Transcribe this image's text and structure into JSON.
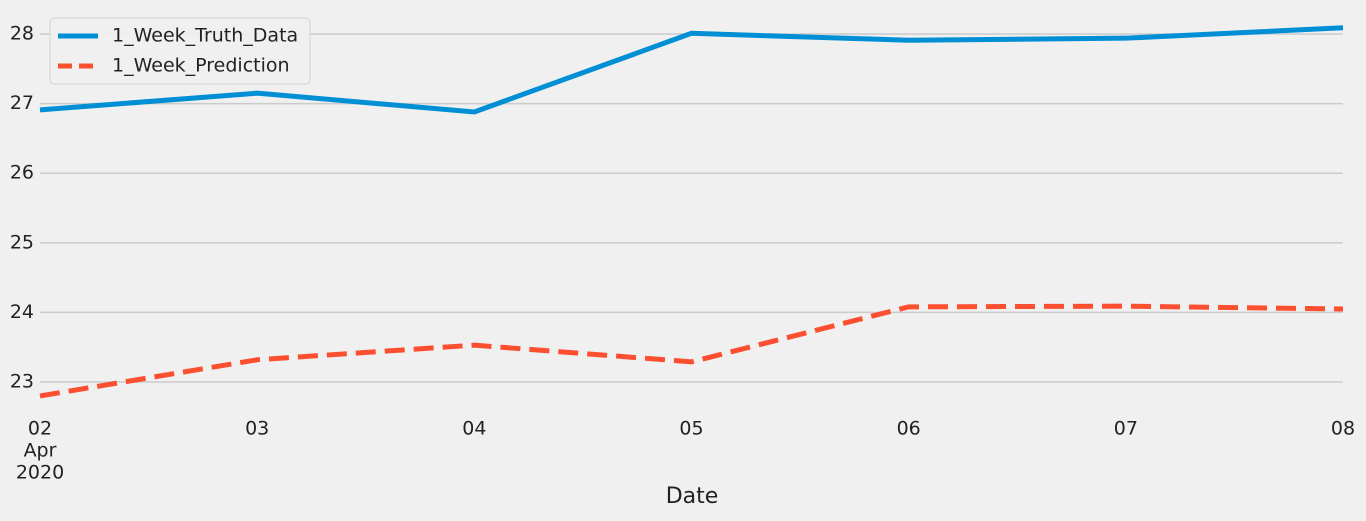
{
  "chart_data": {
    "type": "line",
    "x": [
      "2020-04-02",
      "2020-04-03",
      "2020-04-04",
      "2020-04-05",
      "2020-04-06",
      "2020-04-07",
      "2020-04-08"
    ],
    "xlim": [
      "2020-04-02",
      "2020-04-08"
    ],
    "xticks": [
      {
        "value": "2020-04-02",
        "label": [
          "02",
          "Apr",
          "2020"
        ]
      },
      {
        "value": "2020-04-03",
        "label": [
          "03"
        ]
      },
      {
        "value": "2020-04-04",
        "label": [
          "04"
        ]
      },
      {
        "value": "2020-04-05",
        "label": [
          "05"
        ]
      },
      {
        "value": "2020-04-06",
        "label": [
          "06"
        ]
      },
      {
        "value": "2020-04-07",
        "label": [
          "07"
        ]
      },
      {
        "value": "2020-04-08",
        "label": [
          "08"
        ]
      }
    ],
    "xlabel": "Date",
    "ylim": [
      22.67,
      28.23
    ],
    "yticks": [
      23,
      24,
      25,
      26,
      27,
      28
    ],
    "grid": true,
    "legend": "upper left",
    "series": [
      {
        "name": "1_Week_Truth_Data",
        "color": "#008fd5",
        "dash": false,
        "values": [
          26.91,
          27.15,
          26.88,
          28.01,
          27.91,
          27.94,
          28.09
        ]
      },
      {
        "name": "1_Week_Prediction",
        "color": "#fc4f30",
        "dash": true,
        "values": [
          22.8,
          23.32,
          23.53,
          23.29,
          24.08,
          24.09,
          24.05
        ]
      }
    ]
  }
}
